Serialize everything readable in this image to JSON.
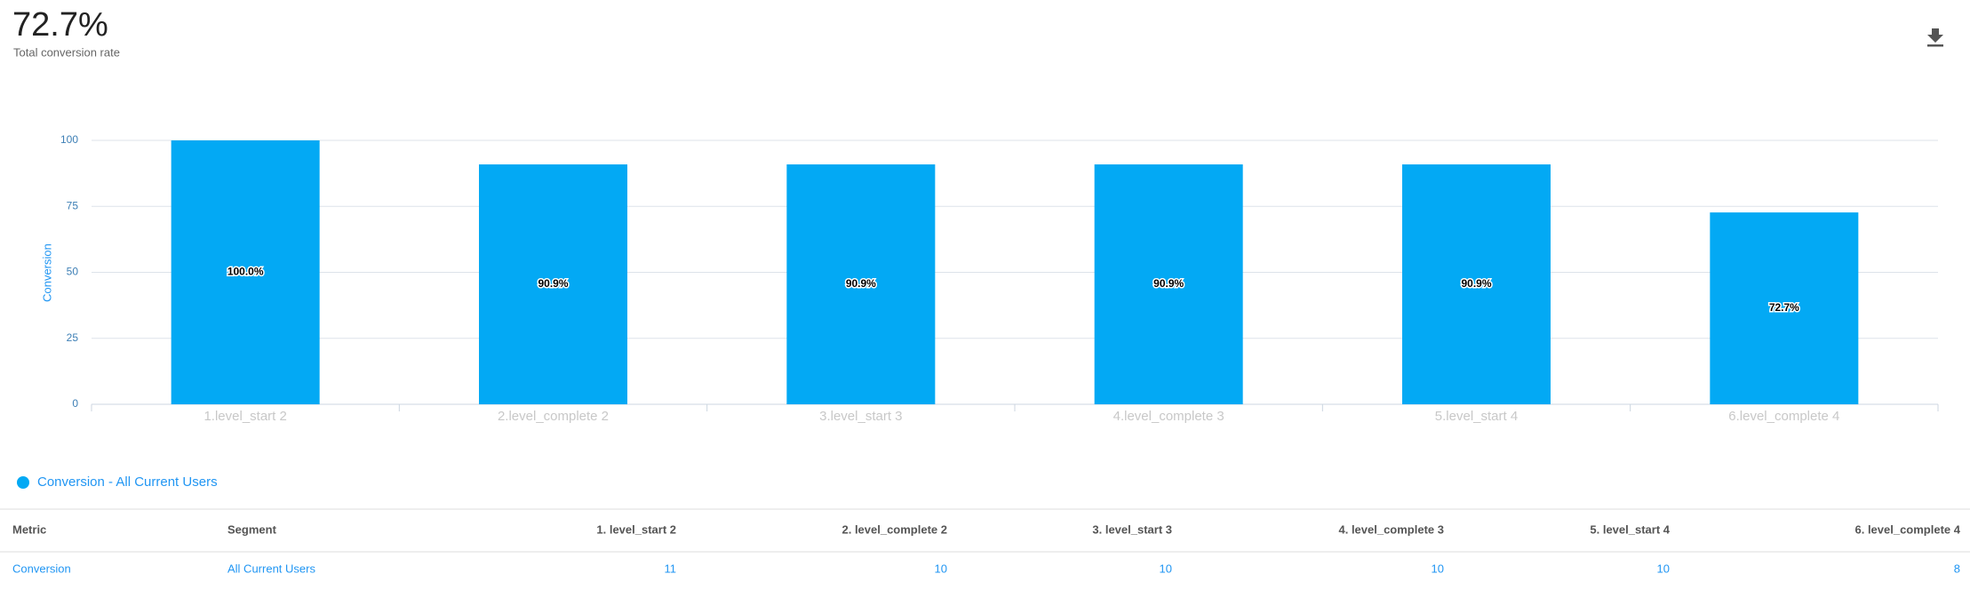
{
  "header": {
    "value": "72.7%",
    "label": "Total conversion rate"
  },
  "chart_data": {
    "type": "bar",
    "y_label": "Conversion",
    "categories": [
      "1.level_start 2",
      "2.level_complete 2",
      "3.level_start 3",
      "4.level_complete 3",
      "5.level_start 4",
      "6.level_complete 4"
    ],
    "series": [
      {
        "name": "Conversion - All Current Users",
        "color": "#03a9f4",
        "values": [
          100,
          90.9,
          90.9,
          90.9,
          90.9,
          72.7
        ],
        "value_labels": [
          "100.0%",
          "90.9%",
          "90.9%",
          "90.9%",
          "90.9%",
          "72.7%"
        ]
      }
    ],
    "ylim": [
      0,
      100
    ],
    "yticks": [
      0,
      25,
      50,
      75,
      100
    ],
    "grid": true
  },
  "table": {
    "columns": [
      "Metric",
      "Segment",
      "1. level_start 2",
      "2. level_complete 2",
      "3. level_start 3",
      "4. level_complete 3",
      "5. level_start 4",
      "6. level_complete 4"
    ],
    "rows": [
      [
        "Conversion",
        "All Current Users",
        11,
        10,
        10,
        10,
        10,
        8
      ]
    ]
  }
}
